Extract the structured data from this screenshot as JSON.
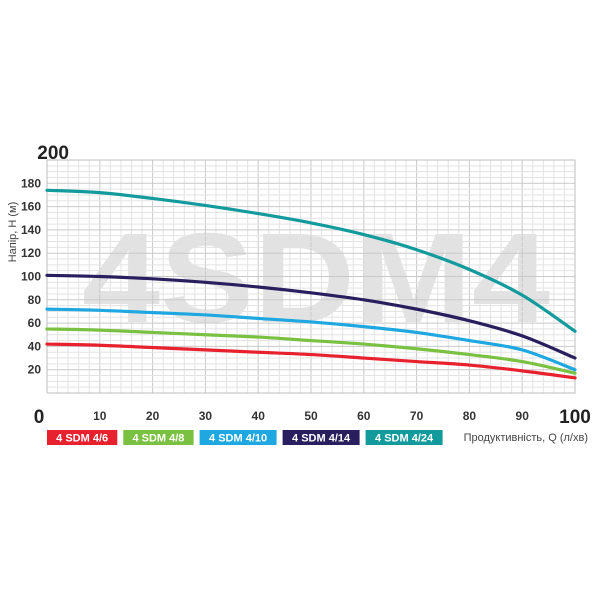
{
  "chart_data": {
    "type": "line",
    "title": "",
    "watermark": "4SDM4",
    "xlabel": "Продуктивність, Q (л/хв)",
    "ylabel": "Напір, H (м)",
    "xlim": [
      0,
      100
    ],
    "ylim": [
      0,
      200
    ],
    "xticks": [
      0,
      10,
      20,
      30,
      40,
      50,
      60,
      70,
      80,
      90,
      100
    ],
    "yticks": [
      20,
      40,
      60,
      80,
      100,
      120,
      140,
      160,
      180,
      200
    ],
    "grid": true,
    "legend_position": "bottom",
    "series": [
      {
        "name": "4 SDM 4/6",
        "color": "#e8212e",
        "x": [
          0,
          10,
          20,
          30,
          40,
          50,
          60,
          70,
          80,
          90,
          100
        ],
        "y": [
          42,
          41,
          39,
          37,
          35,
          33,
          30,
          27,
          24,
          19,
          13
        ]
      },
      {
        "name": "4 SDM 4/8",
        "color": "#7ac142",
        "x": [
          0,
          10,
          20,
          30,
          40,
          50,
          60,
          70,
          80,
          90,
          100
        ],
        "y": [
          55,
          54,
          52,
          50,
          48,
          45,
          42,
          38,
          33,
          27,
          17
        ]
      },
      {
        "name": "4 SDM 4/10",
        "color": "#1ea7e0",
        "x": [
          0,
          10,
          20,
          30,
          40,
          50,
          60,
          70,
          80,
          90,
          100
        ],
        "y": [
          72,
          71,
          69,
          67,
          64,
          61,
          57,
          52,
          45,
          37,
          20
        ]
      },
      {
        "name": "4 SDM 4/14",
        "color": "#2a1f5e",
        "x": [
          0,
          10,
          20,
          30,
          40,
          50,
          60,
          70,
          80,
          90,
          100
        ],
        "y": [
          101,
          100,
          98,
          95,
          91,
          86,
          80,
          72,
          62,
          49,
          30
        ]
      },
      {
        "name": "4 SDM 4/24",
        "color": "#139a9c",
        "x": [
          0,
          10,
          20,
          30,
          40,
          50,
          60,
          70,
          80,
          90,
          100
        ],
        "y": [
          174,
          172,
          167,
          161,
          154,
          146,
          136,
          123,
          106,
          84,
          53
        ]
      }
    ]
  }
}
